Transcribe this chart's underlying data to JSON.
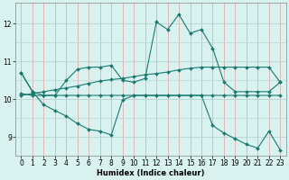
{
  "xlabel": "Humidex (Indice chaleur)",
  "background_color": "#d8f2f0",
  "line_color": "#1a7a6e",
  "grid_color_h": "#b8d8d8",
  "grid_color_v": "#e8a0a0",
  "xlim": [
    -0.5,
    23.5
  ],
  "ylim": [
    8.5,
    12.55
  ],
  "yticks": [
    9,
    10,
    11,
    12
  ],
  "xticks": [
    0,
    1,
    2,
    3,
    4,
    5,
    6,
    7,
    8,
    9,
    10,
    11,
    12,
    13,
    14,
    15,
    16,
    17,
    18,
    19,
    20,
    21,
    22,
    23
  ],
  "lines": [
    {
      "x": [
        0,
        1,
        2,
        3,
        4,
        5,
        6,
        7,
        8,
        9,
        10,
        11,
        12,
        13,
        14,
        15,
        16,
        17,
        18,
        19,
        20,
        21,
        22,
        23
      ],
      "y": [
        10.7,
        10.2,
        10.1,
        10.1,
        10.5,
        10.8,
        10.85,
        10.85,
        10.9,
        10.5,
        10.45,
        10.55,
        12.05,
        11.85,
        12.25,
        11.75,
        11.85,
        11.35,
        10.45,
        10.2,
        10.2,
        10.2,
        10.2,
        10.45
      ]
    },
    {
      "x": [
        0,
        1,
        2,
        3,
        4,
        5,
        6,
        7,
        8,
        9,
        10,
        11,
        12,
        13,
        14,
        15,
        16,
        17,
        18,
        19,
        20,
        21,
        22,
        23
      ],
      "y": [
        10.15,
        10.1,
        10.1,
        10.1,
        10.1,
        10.1,
        10.1,
        10.1,
        10.1,
        10.1,
        10.1,
        10.1,
        10.1,
        10.1,
        10.1,
        10.1,
        10.1,
        10.1,
        10.1,
        10.1,
        10.1,
        10.1,
        10.1,
        10.1
      ]
    },
    {
      "x": [
        0,
        1,
        2,
        3,
        4,
        5,
        6,
        7,
        8,
        9,
        10,
        11,
        12,
        13,
        14,
        15,
        16,
        17,
        18,
        19,
        20,
        21,
        22,
        23
      ],
      "y": [
        10.1,
        10.15,
        10.2,
        10.25,
        10.3,
        10.35,
        10.42,
        10.48,
        10.52,
        10.55,
        10.6,
        10.65,
        10.68,
        10.72,
        10.78,
        10.82,
        10.85,
        10.85,
        10.85,
        10.85,
        10.85,
        10.85,
        10.85,
        10.45
      ]
    },
    {
      "x": [
        0,
        1,
        2,
        3,
        4,
        5,
        6,
        7,
        8,
        9,
        10,
        11,
        12,
        13,
        14,
        15,
        16,
        17,
        18,
        19,
        20,
        21,
        22,
        23
      ],
      "y": [
        10.7,
        10.2,
        9.85,
        9.7,
        9.55,
        9.35,
        9.2,
        9.15,
        9.05,
        9.98,
        10.1,
        10.1,
        10.1,
        10.1,
        10.1,
        10.1,
        10.1,
        9.3,
        9.1,
        8.95,
        8.8,
        8.7,
        9.15,
        8.65
      ]
    }
  ]
}
